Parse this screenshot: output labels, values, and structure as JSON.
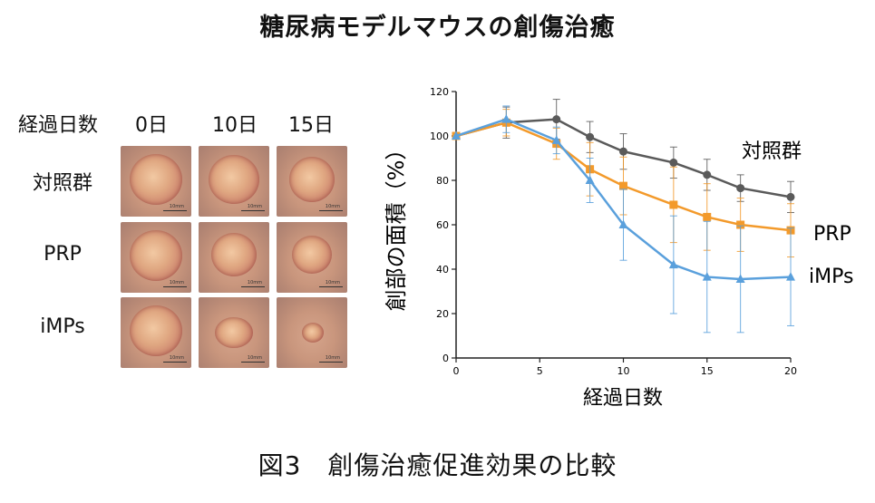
{
  "title": "糖尿病モデルマウスの創傷治癒",
  "caption": "図3　創傷治癒促進効果の比較",
  "photo_grid": {
    "header": {
      "days_label": "経過日数",
      "day_0": "0日",
      "day_10": "10日",
      "day_15": "15日"
    },
    "rows": [
      "対照群",
      "PRP",
      "iMPs"
    ],
    "scale_label": "10mm"
  },
  "chart_data": {
    "type": "line",
    "xlabel": "経過日数",
    "ylabel": "創部の面積（%）",
    "xlim": [
      0,
      20
    ],
    "ylim": [
      0,
      120
    ],
    "xticks": [
      0,
      5,
      10,
      15,
      20
    ],
    "yticks": [
      0,
      20,
      40,
      60,
      80,
      100,
      120
    ],
    "series": [
      {
        "name": "対照群",
        "color": "#5a5a5a",
        "marker": "circle",
        "x": [
          0,
          3,
          6,
          8,
          10,
          13,
          15,
          17,
          20
        ],
        "y": [
          100,
          106,
          107.5,
          99.5,
          93,
          88,
          82.5,
          76.5,
          72.5
        ],
        "err": [
          0,
          7,
          9,
          7,
          8,
          7,
          7,
          6,
          7
        ]
      },
      {
        "name": "PRP",
        "color": "#f39a2b",
        "marker": "square",
        "x": [
          0,
          3,
          6,
          8,
          10,
          13,
          15,
          17,
          20
        ],
        "y": [
          100,
          106,
          96.5,
          85,
          77.5,
          69,
          63.5,
          60,
          57.5
        ],
        "err": [
          0,
          6,
          7,
          12,
          13,
          17,
          15,
          12,
          12
        ]
      },
      {
        "name": "iMPs",
        "color": "#5aa0dc",
        "marker": "triangle",
        "x": [
          0,
          3,
          6,
          8,
          10,
          13,
          15,
          17,
          20
        ],
        "y": [
          100,
          107.5,
          98,
          80,
          60,
          42,
          36.5,
          35.5,
          36.5
        ],
        "err": [
          0,
          6,
          6,
          10,
          16,
          22,
          25,
          24,
          22
        ]
      }
    ]
  }
}
